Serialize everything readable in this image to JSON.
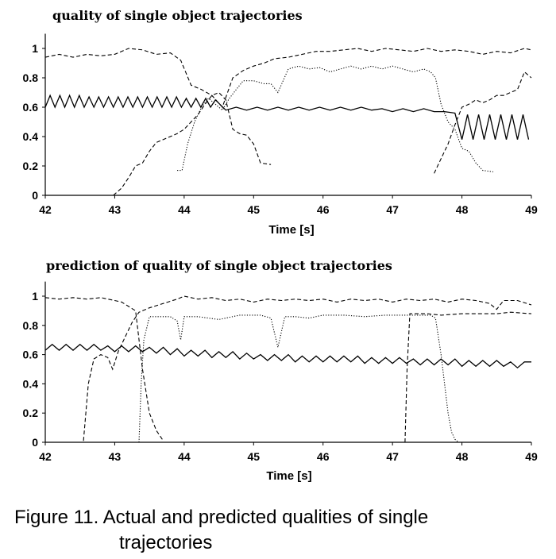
{
  "caption": {
    "line1": "Figure 11.  Actual and predicted qualities of single",
    "line2": "trajectories"
  },
  "chart_data": [
    {
      "type": "line",
      "title": "quality of single object trajectories",
      "xlabel": "Time [s]",
      "ylabel": "",
      "xlim": [
        42,
        49
      ],
      "ylim": [
        0,
        1.1
      ],
      "xticks": [
        "42",
        "43",
        "44",
        "45",
        "46",
        "47",
        "48",
        "49"
      ],
      "yticks": [
        "0",
        "0.2",
        "0.4",
        "0.6",
        "0.8",
        "1"
      ],
      "grid": false,
      "legend": "none",
      "series": [
        {
          "style": "solid",
          "x": [
            42.0,
            42.07,
            42.14,
            42.21,
            42.28,
            42.35,
            42.42,
            42.49,
            42.56,
            42.63,
            42.7,
            42.77,
            42.84,
            42.91,
            42.98,
            43.05,
            43.12,
            43.19,
            43.26,
            43.33,
            43.4,
            43.47,
            43.54,
            43.61,
            43.68,
            43.75,
            43.82,
            43.89,
            43.96,
            44.03,
            44.1,
            44.17,
            44.24,
            44.31,
            44.38,
            44.45,
            44.6,
            44.75,
            44.9,
            45.05,
            45.2,
            45.35,
            45.5,
            45.65,
            45.8,
            45.95,
            46.1,
            46.25,
            46.4,
            46.55,
            46.7,
            46.85,
            47.0,
            47.15,
            47.3,
            47.45,
            47.6,
            47.75,
            47.9,
            48.0,
            48.08,
            48.16,
            48.24,
            48.32,
            48.4,
            48.48,
            48.56,
            48.64,
            48.72,
            48.8,
            48.88,
            48.96
          ],
          "y": [
            0.6,
            0.68,
            0.6,
            0.68,
            0.6,
            0.68,
            0.6,
            0.68,
            0.6,
            0.67,
            0.6,
            0.67,
            0.6,
            0.67,
            0.6,
            0.67,
            0.6,
            0.67,
            0.6,
            0.67,
            0.6,
            0.67,
            0.6,
            0.67,
            0.6,
            0.67,
            0.6,
            0.67,
            0.6,
            0.66,
            0.6,
            0.66,
            0.6,
            0.66,
            0.6,
            0.65,
            0.58,
            0.6,
            0.58,
            0.6,
            0.58,
            0.6,
            0.58,
            0.6,
            0.58,
            0.6,
            0.58,
            0.6,
            0.58,
            0.6,
            0.58,
            0.59,
            0.57,
            0.59,
            0.57,
            0.59,
            0.57,
            0.57,
            0.56,
            0.38,
            0.55,
            0.38,
            0.55,
            0.38,
            0.55,
            0.38,
            0.55,
            0.38,
            0.55,
            0.38,
            0.55,
            0.38
          ]
        },
        {
          "style": "dashed",
          "x": [
            42.0,
            42.2,
            42.4,
            42.6,
            42.8,
            43.0,
            43.2,
            43.4,
            43.6,
            43.8,
            43.95,
            44.1,
            44.25,
            44.4,
            44.55,
            44.7,
            44.85,
            45.0,
            45.15,
            45.3,
            45.5,
            45.7,
            45.9,
            46.1,
            46.3,
            46.5,
            46.7,
            46.9,
            47.1,
            47.3,
            47.5,
            47.7,
            47.9,
            48.1,
            48.3,
            48.5,
            48.7,
            48.9,
            49.0
          ],
          "y": [
            0.94,
            0.96,
            0.94,
            0.96,
            0.95,
            0.96,
            1.0,
            0.99,
            0.96,
            0.97,
            0.92,
            0.75,
            0.72,
            0.68,
            0.6,
            0.8,
            0.85,
            0.88,
            0.9,
            0.93,
            0.94,
            0.96,
            0.98,
            0.98,
            0.99,
            1.0,
            0.98,
            1.0,
            0.99,
            0.98,
            1.0,
            0.98,
            0.99,
            0.98,
            0.96,
            0.98,
            0.97,
            1.0,
            0.99
          ]
        },
        {
          "style": "dashed",
          "x": [
            42.98,
            43.1,
            43.2,
            43.3,
            43.4,
            43.5,
            43.6,
            43.7,
            43.8,
            43.9,
            44.0,
            44.1,
            44.2,
            44.3,
            44.4,
            44.5,
            44.6,
            44.7,
            44.8,
            44.9,
            45.0,
            45.1,
            45.25
          ],
          "y": [
            0.0,
            0.05,
            0.12,
            0.2,
            0.22,
            0.3,
            0.36,
            0.38,
            0.4,
            0.42,
            0.45,
            0.5,
            0.55,
            0.62,
            0.68,
            0.7,
            0.65,
            0.45,
            0.42,
            0.41,
            0.35,
            0.22,
            0.21
          ]
        },
        {
          "style": "dotted",
          "x": [
            43.9,
            43.97,
            44.05,
            44.15,
            44.25,
            44.35,
            44.45,
            44.55,
            44.65,
            44.75,
            44.85,
            45.0,
            45.15,
            45.25,
            45.35,
            45.5,
            45.65,
            45.8,
            45.95,
            46.1,
            46.25,
            46.4,
            46.55,
            46.7,
            46.85,
            47.0,
            47.15,
            47.3,
            47.45,
            47.55,
            47.62,
            47.7,
            47.8,
            47.9,
            48.0,
            48.1,
            48.2,
            48.3,
            48.45
          ],
          "y": [
            0.17,
            0.17,
            0.35,
            0.5,
            0.6,
            0.66,
            0.62,
            0.58,
            0.66,
            0.72,
            0.78,
            0.78,
            0.76,
            0.76,
            0.7,
            0.86,
            0.88,
            0.86,
            0.87,
            0.84,
            0.86,
            0.88,
            0.86,
            0.88,
            0.86,
            0.88,
            0.86,
            0.84,
            0.86,
            0.84,
            0.8,
            0.62,
            0.5,
            0.45,
            0.32,
            0.3,
            0.22,
            0.17,
            0.16
          ]
        },
        {
          "style": "dashed",
          "x": [
            47.6,
            47.7,
            47.8,
            47.9,
            48.0,
            48.1,
            48.2,
            48.3,
            48.4,
            48.5,
            48.6,
            48.7,
            48.8,
            48.9,
            49.0
          ],
          "y": [
            0.15,
            0.25,
            0.35,
            0.48,
            0.6,
            0.62,
            0.65,
            0.63,
            0.65,
            0.68,
            0.68,
            0.7,
            0.72,
            0.84,
            0.8
          ]
        }
      ]
    },
    {
      "type": "line",
      "title": "prediction of quality of single object trajectories",
      "xlabel": "Time [s]",
      "ylabel": "",
      "xlim": [
        42,
        49
      ],
      "ylim": [
        0,
        1.1
      ],
      "xticks": [
        "42",
        "43",
        "44",
        "45",
        "46",
        "47",
        "48",
        "49"
      ],
      "yticks": [
        "0",
        "0.2",
        "0.4",
        "0.6",
        "0.8",
        "1"
      ],
      "grid": false,
      "legend": "none",
      "series": [
        {
          "style": "solid",
          "x": [
            42.0,
            42.1,
            42.2,
            42.3,
            42.4,
            42.5,
            42.6,
            42.7,
            42.8,
            42.9,
            43.0,
            43.1,
            43.2,
            43.3,
            43.4,
            43.5,
            43.6,
            43.7,
            43.8,
            43.9,
            44.0,
            44.1,
            44.2,
            44.3,
            44.4,
            44.5,
            44.6,
            44.7,
            44.8,
            44.9,
            45.0,
            45.1,
            45.2,
            45.3,
            45.4,
            45.5,
            45.6,
            45.7,
            45.8,
            45.9,
            46.0,
            46.1,
            46.2,
            46.3,
            46.4,
            46.5,
            46.6,
            46.7,
            46.8,
            46.9,
            47.0,
            47.1,
            47.2,
            47.3,
            47.4,
            47.5,
            47.6,
            47.7,
            47.8,
            47.9,
            48.0,
            48.1,
            48.2,
            48.3,
            48.4,
            48.5,
            48.6,
            48.7,
            48.8,
            48.9,
            49.0
          ],
          "y": [
            0.63,
            0.67,
            0.63,
            0.67,
            0.63,
            0.67,
            0.63,
            0.67,
            0.63,
            0.66,
            0.62,
            0.66,
            0.62,
            0.66,
            0.62,
            0.65,
            0.61,
            0.65,
            0.6,
            0.64,
            0.59,
            0.63,
            0.59,
            0.63,
            0.58,
            0.62,
            0.58,
            0.62,
            0.57,
            0.61,
            0.57,
            0.6,
            0.56,
            0.6,
            0.56,
            0.6,
            0.55,
            0.59,
            0.55,
            0.59,
            0.55,
            0.59,
            0.55,
            0.59,
            0.55,
            0.59,
            0.54,
            0.58,
            0.54,
            0.58,
            0.54,
            0.58,
            0.54,
            0.57,
            0.53,
            0.57,
            0.53,
            0.57,
            0.53,
            0.57,
            0.52,
            0.56,
            0.52,
            0.56,
            0.52,
            0.56,
            0.52,
            0.55,
            0.51,
            0.55,
            0.55
          ]
        },
        {
          "style": "dashed",
          "x": [
            42.0,
            42.2,
            42.4,
            42.6,
            42.8,
            43.0,
            43.1,
            43.2,
            43.3,
            43.4,
            43.5,
            43.6,
            43.7
          ],
          "y": [
            0.99,
            0.98,
            0.99,
            0.98,
            0.99,
            0.97,
            0.96,
            0.93,
            0.9,
            0.5,
            0.2,
            0.08,
            0.01
          ]
        },
        {
          "style": "dashed",
          "x": [
            42.55,
            42.62,
            42.7,
            42.8,
            42.9,
            42.97,
            43.05,
            43.15,
            43.25,
            43.35,
            43.5,
            43.7,
            43.9,
            44.0,
            44.2,
            44.4,
            44.6,
            44.8,
            45.0,
            45.2,
            45.4,
            45.6,
            45.8,
            46.0,
            46.2,
            46.4,
            46.6,
            46.8,
            47.0,
            47.2,
            47.4,
            47.6,
            47.8,
            48.0,
            48.2,
            48.4,
            48.5,
            48.6,
            48.8,
            49.0
          ],
          "y": [
            0.01,
            0.4,
            0.57,
            0.6,
            0.58,
            0.5,
            0.62,
            0.72,
            0.82,
            0.89,
            0.92,
            0.95,
            0.98,
            1.0,
            0.98,
            0.99,
            0.97,
            0.98,
            0.96,
            0.98,
            0.97,
            0.98,
            0.97,
            0.98,
            0.96,
            0.98,
            0.97,
            0.98,
            0.96,
            0.98,
            0.97,
            0.98,
            0.96,
            0.98,
            0.97,
            0.95,
            0.91,
            0.97,
            0.97,
            0.94
          ]
        },
        {
          "style": "dotted",
          "x": [
            43.35,
            43.38,
            43.42,
            43.5,
            43.6,
            43.8,
            43.9,
            43.95,
            44.0,
            44.2,
            44.5,
            44.8,
            45.1,
            45.25,
            45.35,
            45.45,
            45.6,
            45.8,
            46.0,
            46.3,
            46.6,
            46.9,
            47.1,
            47.25,
            47.4,
            47.55,
            47.62,
            47.7,
            47.75,
            47.8,
            47.85,
            47.9,
            47.95
          ],
          "y": [
            0.0,
            0.4,
            0.7,
            0.86,
            0.86,
            0.86,
            0.83,
            0.7,
            0.86,
            0.86,
            0.84,
            0.87,
            0.87,
            0.85,
            0.65,
            0.86,
            0.86,
            0.85,
            0.87,
            0.87,
            0.86,
            0.87,
            0.87,
            0.87,
            0.87,
            0.87,
            0.85,
            0.6,
            0.4,
            0.2,
            0.07,
            0.02,
            0.0
          ]
        },
        {
          "style": "dashed",
          "x": [
            47.18,
            47.21,
            47.25,
            47.35,
            47.5,
            47.7,
            48.0,
            48.3,
            48.5,
            48.7,
            49.0
          ],
          "y": [
            0.0,
            0.5,
            0.88,
            0.88,
            0.88,
            0.87,
            0.88,
            0.88,
            0.88,
            0.89,
            0.88
          ]
        }
      ]
    }
  ]
}
